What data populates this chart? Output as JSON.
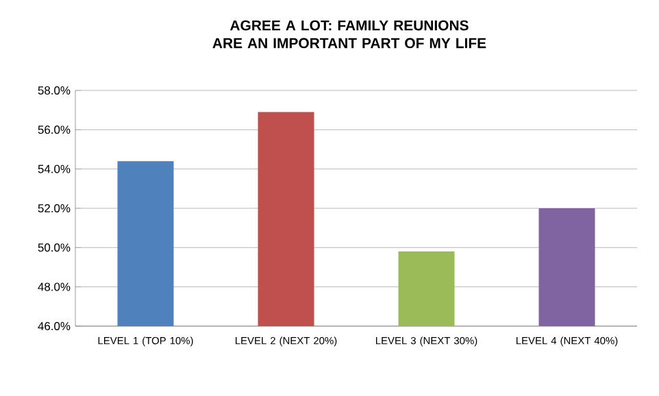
{
  "chart_data": {
    "type": "bar",
    "title": "AGREE A LOT: FAMILY REUNIONS ARE AN IMPORTANT PART OF MY LIFE",
    "categories": [
      "LEVEL 1 (TOP 10%)",
      "LEVEL 2 (NEXT 20%)",
      "LEVEL 3 (NEXT 30%)",
      "LEVEL 4 (NEXT 40%)"
    ],
    "values": [
      54.4,
      56.9,
      49.8,
      52.0
    ],
    "colors": [
      "#4f81bd",
      "#c0504d",
      "#9bbb59",
      "#8064a2"
    ],
    "ylim": [
      46,
      58
    ],
    "yticks": [
      {
        "value": 46,
        "label": "46.0%"
      },
      {
        "value": 48,
        "label": "48.0%"
      },
      {
        "value": 50,
        "label": "50.0%"
      },
      {
        "value": 52,
        "label": "52.0%"
      },
      {
        "value": 54,
        "label": "54.0%"
      },
      {
        "value": 56,
        "label": "56.0%"
      },
      {
        "value": 58,
        "label": "58.0%"
      }
    ],
    "grid": "y"
  }
}
